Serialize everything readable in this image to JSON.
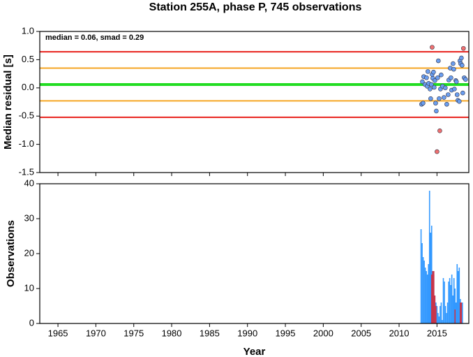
{
  "title": "Station 255A, phase P, 745 observations",
  "chart_data": [
    {
      "type": "scatter",
      "ylabel": "Median residual [s]",
      "annotation": "median = 0.06, smad = 0.29",
      "xlim": [
        1962.6,
        2019.2
      ],
      "xticks": [
        1965,
        1970,
        1975,
        1980,
        1985,
        1990,
        1995,
        2000,
        2005,
        2010,
        2015
      ],
      "ylim": [
        -1.5,
        1.0
      ],
      "yticks": [
        -1.5,
        {
          "value": -1.0,
          "label": "-1.0"
        },
        -0.5,
        {
          "value": 0.0,
          "label": "0.0"
        },
        0.5,
        {
          "value": 1.0,
          "label": "1.0"
        }
      ],
      "hlines": [
        {
          "value": 0.64,
          "color": "#e8201c"
        },
        {
          "value": 0.35,
          "color": "#f5a623"
        },
        {
          "value": 0.06,
          "color": "#22dd22"
        },
        {
          "value": -0.23,
          "color": "#f5a623"
        },
        {
          "value": -0.52,
          "color": "#e8201c"
        }
      ],
      "series": [
        {
          "color": "#6a9ef0",
          "x": [
            2012.97,
            2013.16,
            2013.07,
            2013.25,
            2013.43,
            2013.62,
            2013.71,
            2013.8,
            2013.9,
            2014.08,
            2014.17,
            2014.26,
            2014.36,
            2014.45,
            2014.54,
            2014.63,
            2014.72,
            2014.82,
            2014.91,
            2015.09,
            2015.18,
            2015.28,
            2015.46,
            2015.55,
            2015.73,
            2015.92,
            2016.1,
            2016.29,
            2016.47,
            2016.56,
            2016.75,
            2016.84,
            2016.93,
            2017.12,
            2017.21,
            2017.3,
            2017.48,
            2017.57,
            2017.66,
            2017.76,
            2017.94,
            2018.03,
            2018.13,
            2018.22,
            2018.31,
            2018.4,
            2018.59,
            2018.77
          ],
          "values": [
            -0.29,
            -0.27,
            0.11,
            0.2,
            0.06,
            0.18,
            0.03,
            0.29,
            0.08,
            -0.02,
            -0.19,
            0.06,
            0.24,
            0.17,
            0.28,
            0.01,
            0.13,
            -0.27,
            -0.41,
            0.18,
            0.48,
            -0.19,
            -0.02,
            0.23,
            0.03,
            -0.17,
            -0.0,
            -0.29,
            -0.12,
            0.14,
            0.35,
            0.18,
            -0.04,
            0.43,
            0.33,
            -0.02,
            0.13,
            0.11,
            -0.12,
            -0.22,
            -0.24,
            0.48,
            0.43,
            0.53,
            0.4,
            -0.09,
            0.18,
            0.15
          ]
        },
        {
          "color": "#f07070",
          "x": [
            2014.36,
            2018.49,
            2015.37,
            2015.0
          ],
          "values": [
            0.72,
            0.7,
            -0.76,
            -1.13
          ]
        }
      ]
    },
    {
      "type": "bar",
      "xlabel": "Year",
      "ylabel": "Observations",
      "xlim": [
        1962.6,
        2019.2
      ],
      "xticks": [
        1965,
        1970,
        1975,
        1980,
        1985,
        1990,
        1995,
        2000,
        2005,
        2010,
        2015
      ],
      "ylim": [
        0,
        40
      ],
      "yticks": [
        0,
        10,
        20,
        30,
        40
      ],
      "series": [
        {
          "color": "#3399ff",
          "x": [
            2012.9,
            2013.04,
            2013.18,
            2013.32,
            2013.46,
            2013.6,
            2013.74,
            2013.88,
            2014.02,
            2014.16,
            2014.3,
            2014.44,
            2014.58,
            2014.72,
            2014.86,
            2015.0,
            2015.14,
            2015.28,
            2015.42,
            2015.56,
            2015.7,
            2015.84,
            2015.98,
            2016.12,
            2016.26,
            2016.4,
            2016.54,
            2016.68,
            2016.82,
            2016.96,
            2017.1,
            2017.24,
            2017.38,
            2017.52,
            2017.66,
            2017.8,
            2017.94,
            2018.08,
            2018.22,
            2018.36
          ],
          "values": [
            27,
            23,
            19,
            18,
            16,
            15,
            14,
            17,
            38,
            26,
            28,
            15,
            14,
            8,
            6,
            5,
            3,
            2,
            5,
            6,
            1,
            13,
            12,
            5,
            3,
            6,
            12,
            13,
            11,
            14,
            8,
            13,
            10,
            6,
            17,
            15,
            16,
            7,
            6,
            6
          ]
        },
        {
          "color": "#c8344a",
          "x": [
            2014.3,
            2014.44,
            2014.58,
            2014.72,
            2014.86,
            2017.38,
            2018.08,
            2018.22
          ],
          "values": [
            14,
            15,
            15,
            8,
            5,
            4,
            6,
            6
          ]
        }
      ]
    }
  ]
}
